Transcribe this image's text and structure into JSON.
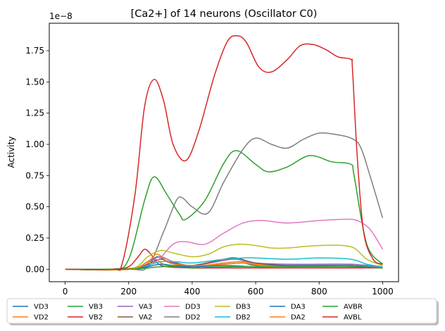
{
  "chart_data": {
    "type": "line",
    "title": "[Ca2+] of 14 neurons (Oscillator C0)",
    "xlabel": "",
    "ylabel": "Activity",
    "y_offset_label": "1e−8",
    "xlim": [
      -50,
      1050
    ],
    "ylim": [
      -0.1,
      1.97
    ],
    "x_ticks": [
      0,
      200,
      400,
      600,
      800,
      1000
    ],
    "x_tick_labels": [
      "0",
      "200",
      "400",
      "600",
      "800",
      "1000"
    ],
    "y_ticks": [
      0.0,
      0.25,
      0.5,
      0.75,
      1.0,
      1.25,
      1.5,
      1.75
    ],
    "y_tick_labels": [
      "0.00",
      "0.25",
      "0.50",
      "0.75",
      "1.00",
      "1.25",
      "1.50",
      "1.75"
    ],
    "grid": false,
    "legend_placement": "bottom-outside",
    "series": [
      {
        "name": "VD3",
        "color": "#1f77b4",
        "x": [
          0,
          150,
          250,
          290,
          330,
          400,
          500,
          600,
          700,
          800,
          900,
          1000
        ],
        "y": [
          0,
          0,
          0.02,
          0.1,
          0.05,
          0.02,
          0.03,
          0.02,
          0.02,
          0.02,
          0.02,
          0.01
        ]
      },
      {
        "name": "VD2",
        "color": "#ff7f0e",
        "x": [
          0,
          150,
          240,
          280,
          320,
          400,
          500,
          560,
          650,
          800,
          900,
          1000
        ],
        "y": [
          0,
          0,
          0.02,
          0.08,
          0.03,
          0.02,
          0.05,
          0.06,
          0.03,
          0.03,
          0.03,
          0.01
        ]
      },
      {
        "name": "VB3",
        "color": "#2ca02c",
        "x": [
          0,
          150,
          200,
          250,
          280,
          320,
          360,
          380,
          440,
          500,
          540,
          600,
          640,
          700,
          770,
          840,
          900,
          910,
          950,
          1000
        ],
        "y": [
          0,
          0,
          0.08,
          0.55,
          0.74,
          0.6,
          0.44,
          0.4,
          0.55,
          0.85,
          0.95,
          0.84,
          0.78,
          0.82,
          0.91,
          0.86,
          0.84,
          0.75,
          0.2,
          0.04
        ]
      },
      {
        "name": "VB2",
        "color": "#d62728",
        "x": [
          0,
          150,
          200,
          230,
          250,
          270,
          290,
          320,
          400,
          500,
          560,
          1000
        ],
        "y": [
          0,
          0,
          0.02,
          0.1,
          0.16,
          0.12,
          0.05,
          0.02,
          0.01,
          0.01,
          0.01,
          0.01
        ]
      },
      {
        "name": "VA3",
        "color": "#9467bd",
        "x": [
          0,
          200,
          260,
          300,
          340,
          400,
          500,
          540,
          600,
          700,
          800,
          900,
          1000
        ],
        "y": [
          0,
          0,
          0.06,
          0.1,
          0.06,
          0.03,
          0.07,
          0.08,
          0.05,
          0.04,
          0.04,
          0.04,
          0.02
        ]
      },
      {
        "name": "VA2",
        "color": "#8c564b",
        "x": [
          0,
          200,
          260,
          300,
          340,
          400,
          500,
          540,
          600,
          700,
          800,
          900,
          1000
        ],
        "y": [
          0,
          0,
          0.04,
          0.08,
          0.05,
          0.03,
          0.08,
          0.09,
          0.05,
          0.03,
          0.03,
          0.03,
          0.01
        ]
      },
      {
        "name": "DD3",
        "color": "#e377c2",
        "x": [
          0,
          200,
          280,
          340,
          380,
          440,
          500,
          560,
          620,
          700,
          800,
          880,
          920,
          960,
          1000
        ],
        "y": [
          0,
          0,
          0.05,
          0.2,
          0.22,
          0.2,
          0.29,
          0.37,
          0.39,
          0.37,
          0.39,
          0.4,
          0.39,
          0.32,
          0.16
        ]
      },
      {
        "name": "DD2",
        "color": "#7f7f7f",
        "x": [
          0,
          200,
          260,
          310,
          350,
          370,
          400,
          450,
          500,
          560,
          600,
          650,
          700,
          750,
          800,
          850,
          900,
          930,
          960,
          1000
        ],
        "y": [
          0,
          0,
          0.02,
          0.3,
          0.55,
          0.57,
          0.5,
          0.45,
          0.7,
          0.96,
          1.05,
          1.0,
          0.97,
          1.04,
          1.09,
          1.08,
          1.05,
          0.98,
          0.75,
          0.41
        ]
      },
      {
        "name": "DB3",
        "color": "#bcbd22",
        "x": [
          0,
          200,
          260,
          300,
          340,
          400,
          450,
          500,
          550,
          600,
          650,
          700,
          800,
          900,
          950,
          1000
        ],
        "y": [
          0,
          0,
          0.1,
          0.15,
          0.13,
          0.1,
          0.12,
          0.18,
          0.2,
          0.19,
          0.17,
          0.17,
          0.19,
          0.18,
          0.08,
          0.03
        ]
      },
      {
        "name": "DB2",
        "color": "#17becf",
        "x": [
          0,
          200,
          260,
          300,
          350,
          400,
          500,
          560,
          600,
          700,
          800,
          900,
          950,
          1000
        ],
        "y": [
          0,
          0,
          0.03,
          0.06,
          0.06,
          0.05,
          0.08,
          0.09,
          0.09,
          0.08,
          0.09,
          0.08,
          0.04,
          0.02
        ]
      },
      {
        "name": "DA3",
        "color": "#1f77b4",
        "x": [
          0,
          200,
          260,
          300,
          340,
          400,
          500,
          560,
          600,
          700,
          800,
          900,
          1000
        ],
        "y": [
          0,
          0,
          0.02,
          0.04,
          0.03,
          0.02,
          0.04,
          0.05,
          0.03,
          0.03,
          0.03,
          0.03,
          0.01
        ]
      },
      {
        "name": "DA2",
        "color": "#ff7f0e",
        "x": [
          0,
          200,
          260,
          290,
          330,
          400,
          500,
          560,
          620,
          700,
          800,
          900,
          1000
        ],
        "y": [
          0,
          0,
          0.06,
          0.12,
          0.05,
          0.03,
          0.04,
          0.05,
          0.03,
          0.02,
          0.02,
          0.02,
          0.01
        ]
      },
      {
        "name": "AVBR",
        "color": "#2ca02c",
        "x": [
          0,
          200,
          260,
          300,
          340,
          400,
          500,
          600,
          700,
          800,
          900,
          1000
        ],
        "y": [
          0,
          0,
          0.01,
          0.02,
          0.02,
          0.01,
          0.02,
          0.02,
          0.02,
          0.02,
          0.02,
          0.01
        ]
      },
      {
        "name": "AVBL",
        "color": "#d62728",
        "x": [
          0,
          150,
          180,
          220,
          250,
          280,
          310,
          340,
          380,
          420,
          470,
          510,
          540,
          570,
          610,
          650,
          700,
          740,
          780,
          820,
          860,
          900,
          905,
          920,
          940,
          970,
          1000
        ],
        "y": [
          0,
          0,
          0.05,
          0.6,
          1.3,
          1.52,
          1.35,
          1.0,
          0.87,
          1.1,
          1.55,
          1.82,
          1.87,
          1.82,
          1.62,
          1.58,
          1.68,
          1.79,
          1.8,
          1.76,
          1.7,
          1.68,
          1.6,
          0.9,
          0.3,
          0.08,
          0.04
        ]
      }
    ]
  }
}
